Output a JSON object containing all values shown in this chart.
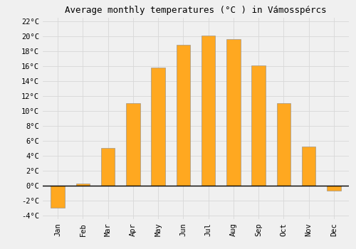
{
  "title": "Average monthly temperatures (°C ) in Vámosspércs",
  "months": [
    "Jan",
    "Feb",
    "Mar",
    "Apr",
    "May",
    "Jun",
    "Jul",
    "Aug",
    "Sep",
    "Oct",
    "Nov",
    "Dec"
  ],
  "values": [
    -3.0,
    0.3,
    5.0,
    11.0,
    15.8,
    18.8,
    20.1,
    19.6,
    16.1,
    11.0,
    5.2,
    -0.7
  ],
  "bar_color": "#FFA820",
  "ylim": [
    -4.5,
    22.5
  ],
  "yticks": [
    -4,
    -2,
    0,
    2,
    4,
    6,
    8,
    10,
    12,
    14,
    16,
    18,
    20,
    22
  ],
  "background_color": "#f0f0f0",
  "grid_color": "#d8d8d8",
  "zero_line_color": "#000000",
  "title_fontsize": 9,
  "tick_fontsize": 7.5,
  "bar_edge_color": "#888888",
  "bar_width": 0.55
}
